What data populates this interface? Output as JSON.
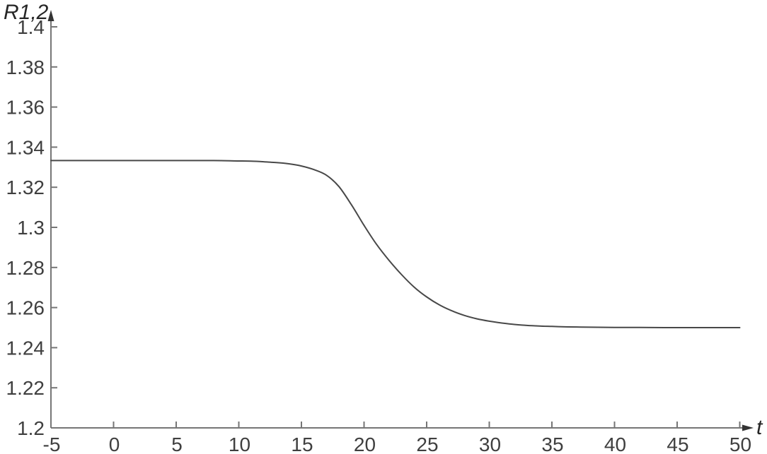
{
  "figure": {
    "background": "#ffffff"
  },
  "chart_data": {
    "type": "line",
    "title": "",
    "xlabel": "t",
    "ylabel": "R1,2",
    "xlim": [
      -5,
      50
    ],
    "ylim": [
      1.2,
      1.4
    ],
    "grid": false,
    "legend_position": "none",
    "axis_color": "#767676",
    "tick_label_color": "#3f3f3f",
    "axis_label_color": "#262626",
    "xticks": [
      {
        "value": -5,
        "label": "-5"
      },
      {
        "value": 0,
        "label": "0"
      },
      {
        "value": 5,
        "label": "5"
      },
      {
        "value": 10,
        "label": "10"
      },
      {
        "value": 15,
        "label": "15"
      },
      {
        "value": 20,
        "label": "20"
      },
      {
        "value": 25,
        "label": "25"
      },
      {
        "value": 30,
        "label": "30"
      },
      {
        "value": 35,
        "label": "35"
      },
      {
        "value": 40,
        "label": "40"
      },
      {
        "value": 45,
        "label": "45"
      },
      {
        "value": 50,
        "label": "50"
      }
    ],
    "yticks": [
      {
        "value": 1.2,
        "label": "1.2"
      },
      {
        "value": 1.22,
        "label": "1.22"
      },
      {
        "value": 1.24,
        "label": "1.24"
      },
      {
        "value": 1.26,
        "label": "1.26"
      },
      {
        "value": 1.28,
        "label": "1.28"
      },
      {
        "value": 1.3,
        "label": "1.3"
      },
      {
        "value": 1.32,
        "label": "1.32"
      },
      {
        "value": 1.34,
        "label": "1.34"
      },
      {
        "value": 1.36,
        "label": "1.36"
      },
      {
        "value": 1.38,
        "label": "1.38"
      },
      {
        "value": 1.4,
        "label": "1.4"
      }
    ],
    "series": [
      {
        "name": "R1,2",
        "color": "#484848",
        "width": 2,
        "points": [
          [
            -5,
            1.3333
          ],
          [
            0,
            1.3333
          ],
          [
            5,
            1.3333
          ],
          [
            8,
            1.3333
          ],
          [
            10,
            1.3331
          ],
          [
            11,
            1.333
          ],
          [
            12,
            1.3327
          ],
          [
            13,
            1.3323
          ],
          [
            14,
            1.3317
          ],
          [
            15,
            1.3306
          ],
          [
            16,
            1.3288
          ],
          [
            17,
            1.326
          ],
          [
            18,
            1.3203
          ],
          [
            19,
            1.3112
          ],
          [
            20,
            1.301
          ],
          [
            21,
            1.2915
          ],
          [
            22,
            1.2835
          ],
          [
            23,
            1.2764
          ],
          [
            24,
            1.2702
          ],
          [
            25,
            1.2653
          ],
          [
            26,
            1.2614
          ],
          [
            27,
            1.2584
          ],
          [
            28,
            1.2561
          ],
          [
            29,
            1.2544
          ],
          [
            30,
            1.2532
          ],
          [
            31,
            1.2523
          ],
          [
            32,
            1.2516
          ],
          [
            33,
            1.2511
          ],
          [
            34,
            1.2508
          ],
          [
            35,
            1.2506
          ],
          [
            36,
            1.2504
          ],
          [
            37,
            1.2503
          ],
          [
            38,
            1.2502
          ],
          [
            40,
            1.2501
          ],
          [
            42,
            1.2501
          ],
          [
            45,
            1.25
          ],
          [
            48,
            1.25
          ],
          [
            50,
            1.25
          ]
        ]
      }
    ]
  }
}
